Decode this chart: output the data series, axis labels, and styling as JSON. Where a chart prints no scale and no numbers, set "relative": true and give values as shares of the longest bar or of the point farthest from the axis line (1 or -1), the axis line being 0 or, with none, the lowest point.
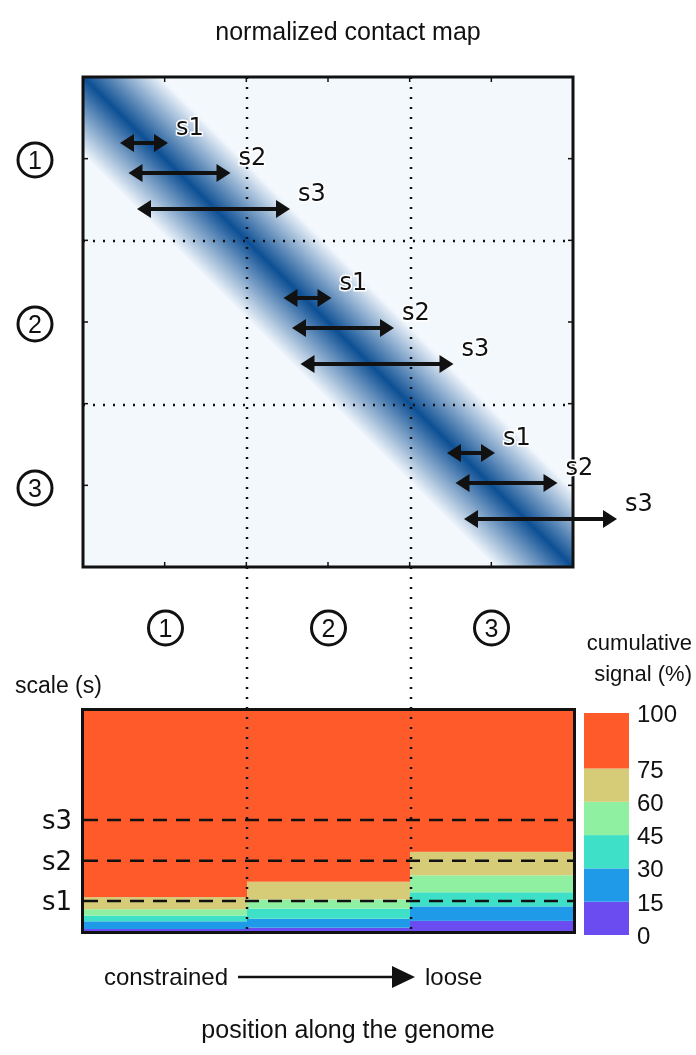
{
  "chart_data": [
    {
      "type": "other",
      "title": "normalized contact map",
      "annotations": [
        "1",
        "2",
        "3",
        "s1",
        "s2",
        "s3",
        "s1",
        "s2",
        "s3",
        "s1",
        "s2",
        "s3"
      ]
    },
    {
      "type": "bar",
      "stacked": true,
      "categories": [
        "1",
        "2",
        "3"
      ],
      "ylabel": "scale (s)",
      "xlabel": "position along the genome",
      "clabel": "cumulative signal (%)",
      "clim": [
        0,
        100
      ],
      "cticks": [
        0,
        15,
        30,
        45,
        60,
        75,
        100
      ],
      "relative": true,
      "ref_lines": [
        {
          "axis": "y",
          "value": 0.136,
          "label": "s1",
          "line_style": "dashed"
        },
        {
          "axis": "y",
          "value": 0.319,
          "label": "s2",
          "line_style": "dashed"
        },
        {
          "axis": "y",
          "value": 0.505,
          "label": "s3",
          "line_style": "dashed"
        }
      ],
      "annotations": [
        "constrained",
        "loose"
      ],
      "series": [
        {
          "color": "#6a4cf0",
          "values": [
            0.009,
            0.015,
            0.046
          ]
        },
        {
          "color": "#1e9ae8",
          "values": [
            0.035,
            0.041,
            0.066
          ]
        },
        {
          "color": "#3ee0c8",
          "values": [
            0.026,
            0.046,
            0.064
          ]
        },
        {
          "color": "#8ef0a0",
          "values": [
            0.029,
            0.041,
            0.077
          ]
        },
        {
          "color": "#d6cc78",
          "values": [
            0.055,
            0.081,
            0.107
          ]
        },
        {
          "color": "#ff5a2a",
          "values": [
            0.846,
            0.776,
            0.64
          ]
        }
      ]
    }
  ]
}
